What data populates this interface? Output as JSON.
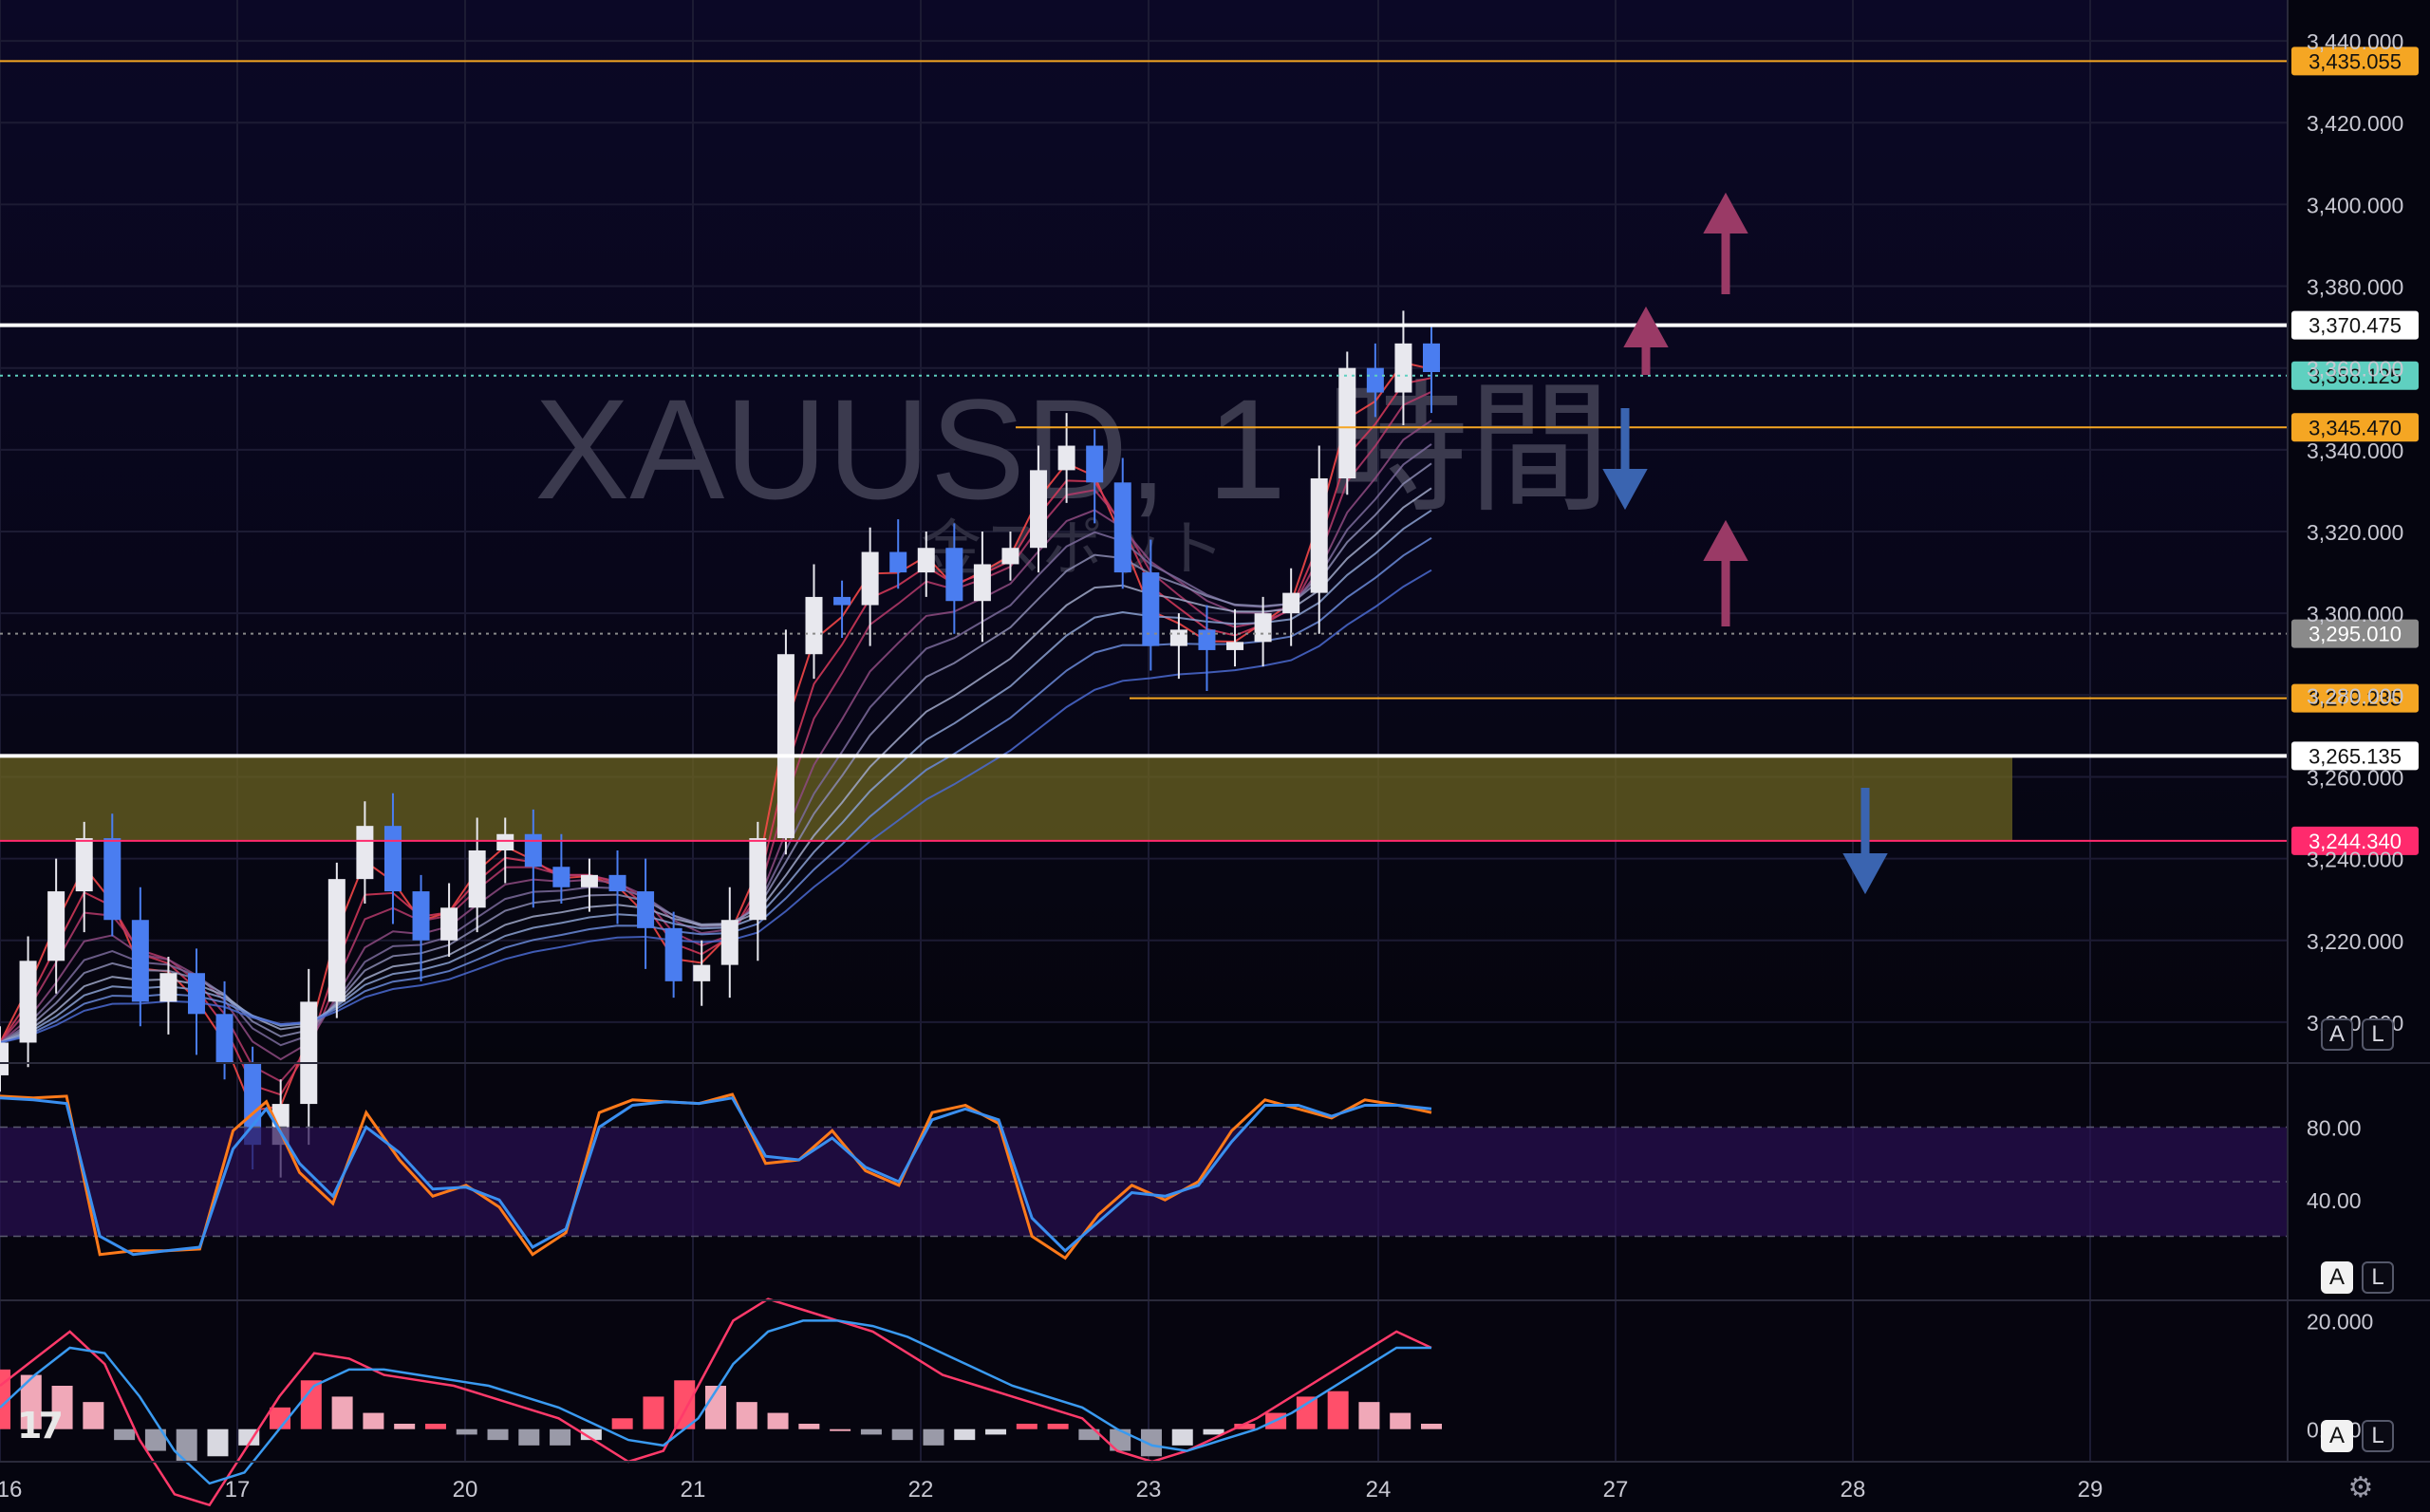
{
  "chart_data": [
    {
      "type": "candlestick",
      "watermark": {
        "title": "XAUUSD, 1 時間",
        "subtitle": "金スポット"
      },
      "x_ticks": [
        "16",
        "17",
        "20",
        "21",
        "22",
        "23",
        "24",
        "27",
        "28",
        "29"
      ],
      "y_ticks": [
        "3,200.000",
        "3,220.000",
        "3,240.000",
        "3,260.000",
        "3,280.000",
        "3,300.000",
        "3,320.000",
        "3,340.000",
        "3,360.000",
        "3,380.000",
        "3,400.000",
        "3,420.000",
        "3,440.000"
      ],
      "ylim": [
        3190,
        3450
      ],
      "price_levels": [
        {
          "label": "3,435.055",
          "value": 3435.055,
          "color": "#f5a623"
        },
        {
          "label": "3,370.475",
          "value": 3370.475,
          "color": "#ffffff"
        },
        {
          "label": "3,358.125",
          "value": 3358.125,
          "color": "#5fd0c0"
        },
        {
          "label": "3,345.470",
          "value": 3345.47,
          "color": "#f5a623"
        },
        {
          "label": "3,295.010",
          "value": 3295.01,
          "color": "#8a8a8a"
        },
        {
          "label": "3,279.235",
          "value": 3279.235,
          "color": "#f5a623"
        },
        {
          "label": "3,265.135",
          "value": 3265.135,
          "color": "#ffffff"
        },
        {
          "label": "3,244.340",
          "value": 3244.34,
          "color": "#ff2a6d"
        }
      ],
      "zone": {
        "from": 3244.34,
        "to": 3265.135,
        "color": "#6b6320"
      },
      "closes": [
        3195,
        3215,
        3232,
        3245,
        3225,
        3205,
        3212,
        3202,
        3190,
        3170,
        3180,
        3205,
        3235,
        3248,
        3232,
        3220,
        3228,
        3242,
        3246,
        3238,
        3233,
        3236,
        3232,
        3223,
        3210,
        3214,
        3225,
        3245,
        3290,
        3304,
        3302,
        3315,
        3310,
        3316,
        3303,
        3312,
        3316,
        3335,
        3341,
        3332,
        3310,
        3292,
        3296,
        3291,
        3293,
        3300,
        3305,
        3333,
        3360,
        3354,
        3366,
        3359
      ]
    },
    {
      "type": "line",
      "name": "stochastic",
      "y_ticks": [
        "40.00",
        "80.00"
      ],
      "ylim": [
        -10,
        110
      ],
      "k": [
        97,
        96,
        97,
        10,
        12,
        12,
        13,
        78,
        94,
        55,
        38,
        88,
        62,
        42,
        48,
        36,
        10,
        22,
        88,
        95,
        94,
        93,
        98,
        60,
        62,
        78,
        56,
        48,
        88,
        92,
        82,
        20,
        8,
        32,
        48,
        40,
        50,
        78,
        95,
        90,
        85,
        95,
        92,
        88
      ],
      "d": [
        96,
        95,
        93,
        20,
        10,
        12,
        14,
        68,
        90,
        60,
        42,
        80,
        66,
        46,
        47,
        40,
        14,
        24,
        80,
        92,
        94,
        93,
        96,
        64,
        62,
        74,
        58,
        50,
        84,
        90,
        84,
        30,
        12,
        28,
        44,
        42,
        48,
        72,
        92,
        92,
        86,
        92,
        92,
        90
      ]
    },
    {
      "type": "bar",
      "name": "macd",
      "y_ticks": [
        "0.000",
        "20.000"
      ],
      "ylim": [
        -6,
        22
      ],
      "histogram": [
        11,
        10,
        8,
        5,
        -2,
        -4,
        -6,
        -5,
        -3,
        4,
        9,
        6,
        3,
        1,
        1,
        -1,
        -2,
        -3,
        -3,
        -2,
        2,
        6,
        9,
        8,
        5,
        3,
        1,
        0,
        -1,
        -2,
        -3,
        -2,
        -1,
        1,
        1,
        -2,
        -4,
        -5,
        -3,
        -1,
        1,
        3,
        6,
        7,
        5,
        3,
        1
      ],
      "macd": [
        8,
        13,
        18,
        12,
        -2,
        -12,
        -14,
        -4,
        6,
        14,
        13,
        10,
        9,
        8,
        6,
        4,
        2,
        -2,
        -6,
        -4,
        8,
        20,
        24,
        22,
        20,
        18,
        14,
        10,
        8,
        6,
        4,
        2,
        -4,
        -6,
        -4,
        -1,
        2,
        6,
        10,
        14,
        18,
        15
      ],
      "signal": [
        4,
        10,
        15,
        14,
        6,
        -4,
        -10,
        -8,
        0,
        8,
        11,
        11,
        10,
        9,
        8,
        6,
        4,
        1,
        -2,
        -3,
        2,
        12,
        18,
        20,
        20,
        19,
        17,
        14,
        11,
        8,
        6,
        4,
        0,
        -3,
        -4,
        -2,
        0,
        3,
        7,
        11,
        15,
        15
      ]
    }
  ],
  "ui": {
    "scale_buttons": [
      {
        "auto": "A",
        "log": "L"
      },
      {
        "auto": "A",
        "log": "L"
      },
      {
        "auto": "A",
        "log": "L"
      }
    ],
    "logo": "17",
    "settings_icon": "gear-icon"
  }
}
